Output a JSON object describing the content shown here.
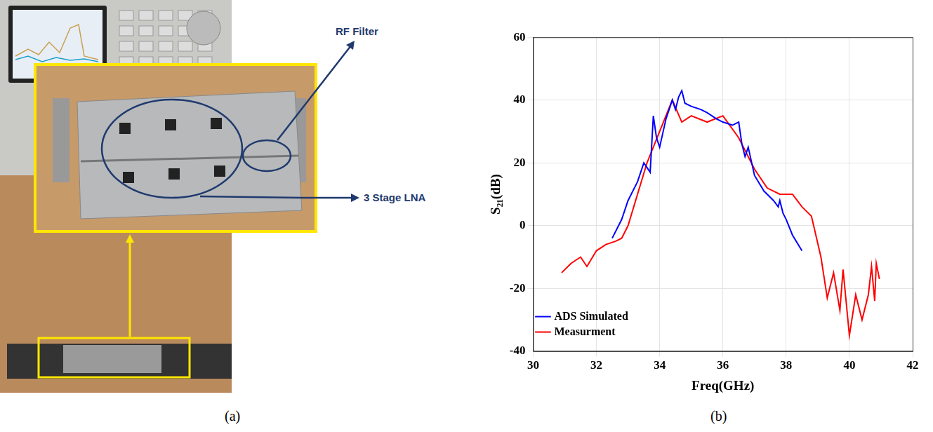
{
  "panels": [
    {
      "caption": "(a)",
      "labels": [
        "RF Filter",
        "3 Stage LNA"
      ]
    },
    {
      "caption": "(b)"
    }
  ],
  "chart_data": {
    "type": "line",
    "x_label": "Freq(GHz)",
    "y_label": "S₂₁(dB)",
    "xlim": [
      30,
      42
    ],
    "xticks": [
      30,
      32,
      34,
      36,
      38,
      40,
      42
    ],
    "ylim": [
      -40,
      60
    ],
    "yticks": [
      -40,
      -20,
      0,
      20,
      40,
      60
    ],
    "grid": true,
    "legend": "upper right",
    "series": [
      {
        "name": "ADS Simulated",
        "color": "#0000ff",
        "x": [
          32.5,
          32.8,
          33.0,
          33.3,
          33.5,
          33.7,
          33.8,
          33.9,
          34.0,
          34.2,
          34.4,
          34.5,
          34.6,
          34.7,
          34.8,
          35.0,
          35.3,
          35.5,
          35.8,
          36.0,
          36.3,
          36.5,
          36.6,
          36.7,
          36.8,
          37.0,
          37.3,
          37.6,
          37.75,
          37.8,
          37.9,
          38.0,
          38.2,
          38.5
        ],
        "values": [
          -4,
          2,
          8,
          14,
          20,
          17,
          35,
          28,
          25,
          34,
          40,
          37,
          41,
          43,
          39,
          38,
          37,
          36,
          34,
          33,
          32,
          33,
          26,
          22,
          25,
          16,
          11,
          8,
          6,
          8,
          4,
          2,
          -3,
          -8
        ]
      },
      {
        "name": "Measurment",
        "color": "#ff0000",
        "x": [
          30.9,
          31.2,
          31.5,
          31.7,
          32.0,
          32.3,
          32.6,
          32.8,
          33.0,
          33.3,
          33.6,
          34.0,
          34.4,
          34.7,
          35.0,
          35.5,
          36.0,
          36.5,
          37.0,
          37.4,
          37.8,
          38.2,
          38.5,
          38.8,
          39.1,
          39.3,
          39.5,
          39.7,
          39.8,
          40.0,
          40.2,
          40.4,
          40.6,
          40.7,
          40.8,
          40.85,
          40.95
        ],
        "values": [
          -15,
          -12,
          -10,
          -13,
          -8,
          -6,
          -5,
          -4,
          0,
          10,
          20,
          30,
          40,
          33,
          35,
          33,
          35,
          28,
          18,
          12,
          10,
          10,
          6,
          3,
          -10,
          -23,
          -15,
          -27,
          -14,
          -35,
          -22,
          -30,
          -22,
          -13,
          -24,
          -12,
          -17
        ]
      }
    ]
  }
}
